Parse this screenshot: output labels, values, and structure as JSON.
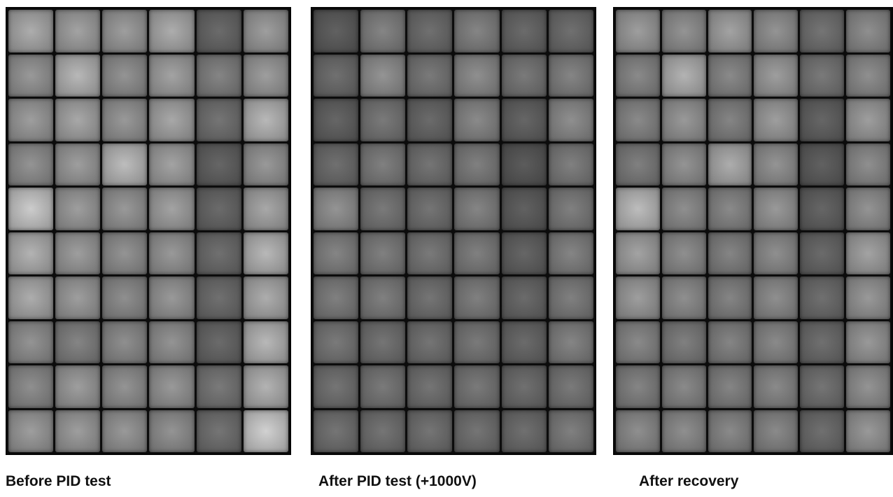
{
  "panels": [
    {
      "caption": "Before PID test",
      "cells": [
        [
          0.68,
          0.64,
          0.62,
          0.68,
          0.42,
          0.62
        ],
        [
          0.6,
          0.72,
          0.58,
          0.64,
          0.52,
          0.62
        ],
        [
          0.62,
          0.66,
          0.6,
          0.66,
          0.46,
          0.72
        ],
        [
          0.58,
          0.62,
          0.74,
          0.64,
          0.4,
          0.6
        ],
        [
          0.8,
          0.62,
          0.6,
          0.64,
          0.42,
          0.66
        ],
        [
          0.7,
          0.62,
          0.58,
          0.6,
          0.44,
          0.72
        ],
        [
          0.68,
          0.62,
          0.56,
          0.6,
          0.44,
          0.68
        ],
        [
          0.58,
          0.52,
          0.56,
          0.58,
          0.42,
          0.72
        ],
        [
          0.56,
          0.62,
          0.58,
          0.6,
          0.48,
          0.7
        ],
        [
          0.62,
          0.62,
          0.6,
          0.58,
          0.46,
          0.82
        ]
      ]
    },
    {
      "caption": "After PID test (+1000V)",
      "cells": [
        [
          0.38,
          0.52,
          0.44,
          0.52,
          0.42,
          0.44
        ],
        [
          0.44,
          0.58,
          0.48,
          0.56,
          0.48,
          0.52
        ],
        [
          0.4,
          0.48,
          0.42,
          0.54,
          0.4,
          0.56
        ],
        [
          0.44,
          0.5,
          0.46,
          0.5,
          0.36,
          0.5
        ],
        [
          0.58,
          0.48,
          0.46,
          0.52,
          0.38,
          0.5
        ],
        [
          0.52,
          0.5,
          0.48,
          0.5,
          0.4,
          0.52
        ],
        [
          0.5,
          0.5,
          0.46,
          0.5,
          0.42,
          0.5
        ],
        [
          0.48,
          0.46,
          0.46,
          0.48,
          0.42,
          0.52
        ],
        [
          0.46,
          0.48,
          0.46,
          0.48,
          0.44,
          0.48
        ],
        [
          0.46,
          0.46,
          0.46,
          0.46,
          0.44,
          0.5
        ]
      ]
    },
    {
      "caption": "After recovery",
      "cells": [
        [
          0.62,
          0.58,
          0.64,
          0.58,
          0.46,
          0.56
        ],
        [
          0.54,
          0.7,
          0.54,
          0.62,
          0.48,
          0.56
        ],
        [
          0.54,
          0.6,
          0.52,
          0.62,
          0.4,
          0.62
        ],
        [
          0.5,
          0.58,
          0.68,
          0.58,
          0.38,
          0.56
        ],
        [
          0.74,
          0.56,
          0.54,
          0.6,
          0.4,
          0.58
        ],
        [
          0.64,
          0.56,
          0.52,
          0.56,
          0.42,
          0.64
        ],
        [
          0.62,
          0.56,
          0.52,
          0.56,
          0.44,
          0.6
        ],
        [
          0.54,
          0.5,
          0.52,
          0.54,
          0.44,
          0.6
        ],
        [
          0.52,
          0.54,
          0.52,
          0.54,
          0.46,
          0.58
        ],
        [
          0.56,
          0.56,
          0.54,
          0.54,
          0.44,
          0.6
        ]
      ]
    }
  ]
}
